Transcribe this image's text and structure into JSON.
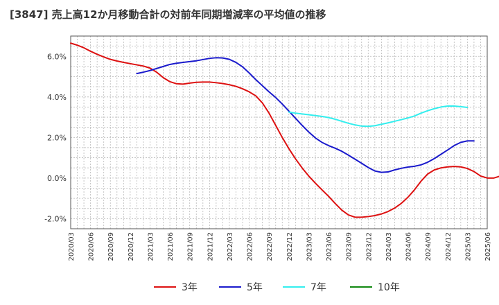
{
  "chart_data": {
    "type": "line",
    "title": "[3847]  売上高12か月移動合計の対前年同期増減率の平均値の推移",
    "xlabel": "",
    "ylabel": "",
    "ylim": [
      -2.5,
      7.0
    ],
    "yticks": [
      -2.0,
      0.0,
      2.0,
      4.0,
      6.0
    ],
    "ytick_labels": [
      "-2.0%",
      "0.0%",
      "2.0%",
      "4.0%",
      "6.0%"
    ],
    "xticks": [
      "2020/03",
      "2020/06",
      "2020/09",
      "2020/12",
      "2021/03",
      "2021/06",
      "2021/09",
      "2021/12",
      "2022/03",
      "2022/06",
      "2022/09",
      "2022/12",
      "2023/03",
      "2023/06",
      "2023/09",
      "2023/12",
      "2024/03",
      "2024/06",
      "2024/09",
      "2024/12",
      "2025/03",
      "2025/06"
    ],
    "grid": true,
    "legend_position": "bottom",
    "series": [
      {
        "name": "3年",
        "color": "#dd1111",
        "start": "2020/03",
        "values": [
          6.65,
          6.55,
          6.42,
          6.25,
          6.1,
          5.97,
          5.85,
          5.77,
          5.7,
          5.64,
          5.58,
          5.52,
          5.42,
          5.22,
          4.95,
          4.75,
          4.65,
          4.63,
          4.68,
          4.72,
          4.73,
          4.73,
          4.7,
          4.66,
          4.6,
          4.52,
          4.4,
          4.25,
          4.05,
          3.7,
          3.2,
          2.6,
          2.0,
          1.45,
          0.95,
          0.5,
          0.1,
          -0.25,
          -0.58,
          -0.9,
          -1.25,
          -1.58,
          -1.82,
          -1.93,
          -1.93,
          -1.9,
          -1.85,
          -1.77,
          -1.65,
          -1.48,
          -1.25,
          -0.95,
          -0.58,
          -0.15,
          0.2,
          0.4,
          0.5,
          0.55,
          0.57,
          0.55,
          0.47,
          0.32,
          0.1,
          0.0,
          0.0,
          0.1
        ]
      },
      {
        "name": "5年",
        "color": "#1a1acc",
        "start": "2021/01",
        "values": [
          5.15,
          5.22,
          5.3,
          5.4,
          5.5,
          5.6,
          5.66,
          5.7,
          5.74,
          5.78,
          5.84,
          5.9,
          5.93,
          5.92,
          5.85,
          5.7,
          5.48,
          5.18,
          4.85,
          4.55,
          4.25,
          3.97,
          3.65,
          3.3,
          2.95,
          2.6,
          2.27,
          1.98,
          1.76,
          1.6,
          1.47,
          1.32,
          1.13,
          0.93,
          0.73,
          0.52,
          0.35,
          0.28,
          0.3,
          0.4,
          0.48,
          0.54,
          0.58,
          0.65,
          0.78,
          0.96,
          1.17,
          1.38,
          1.6,
          1.76,
          1.83,
          1.83
        ]
      },
      {
        "name": "7年",
        "color": "#33eeee",
        "start": "2022/12",
        "values": [
          3.25,
          3.2,
          3.16,
          3.12,
          3.08,
          3.04,
          2.98,
          2.9,
          2.8,
          2.7,
          2.62,
          2.56,
          2.55,
          2.58,
          2.65,
          2.72,
          2.8,
          2.88,
          2.96,
          3.06,
          3.2,
          3.32,
          3.42,
          3.5,
          3.55,
          3.55,
          3.52,
          3.48
        ]
      },
      {
        "name": "10年",
        "color": "#118811",
        "start": "",
        "values": []
      }
    ]
  }
}
